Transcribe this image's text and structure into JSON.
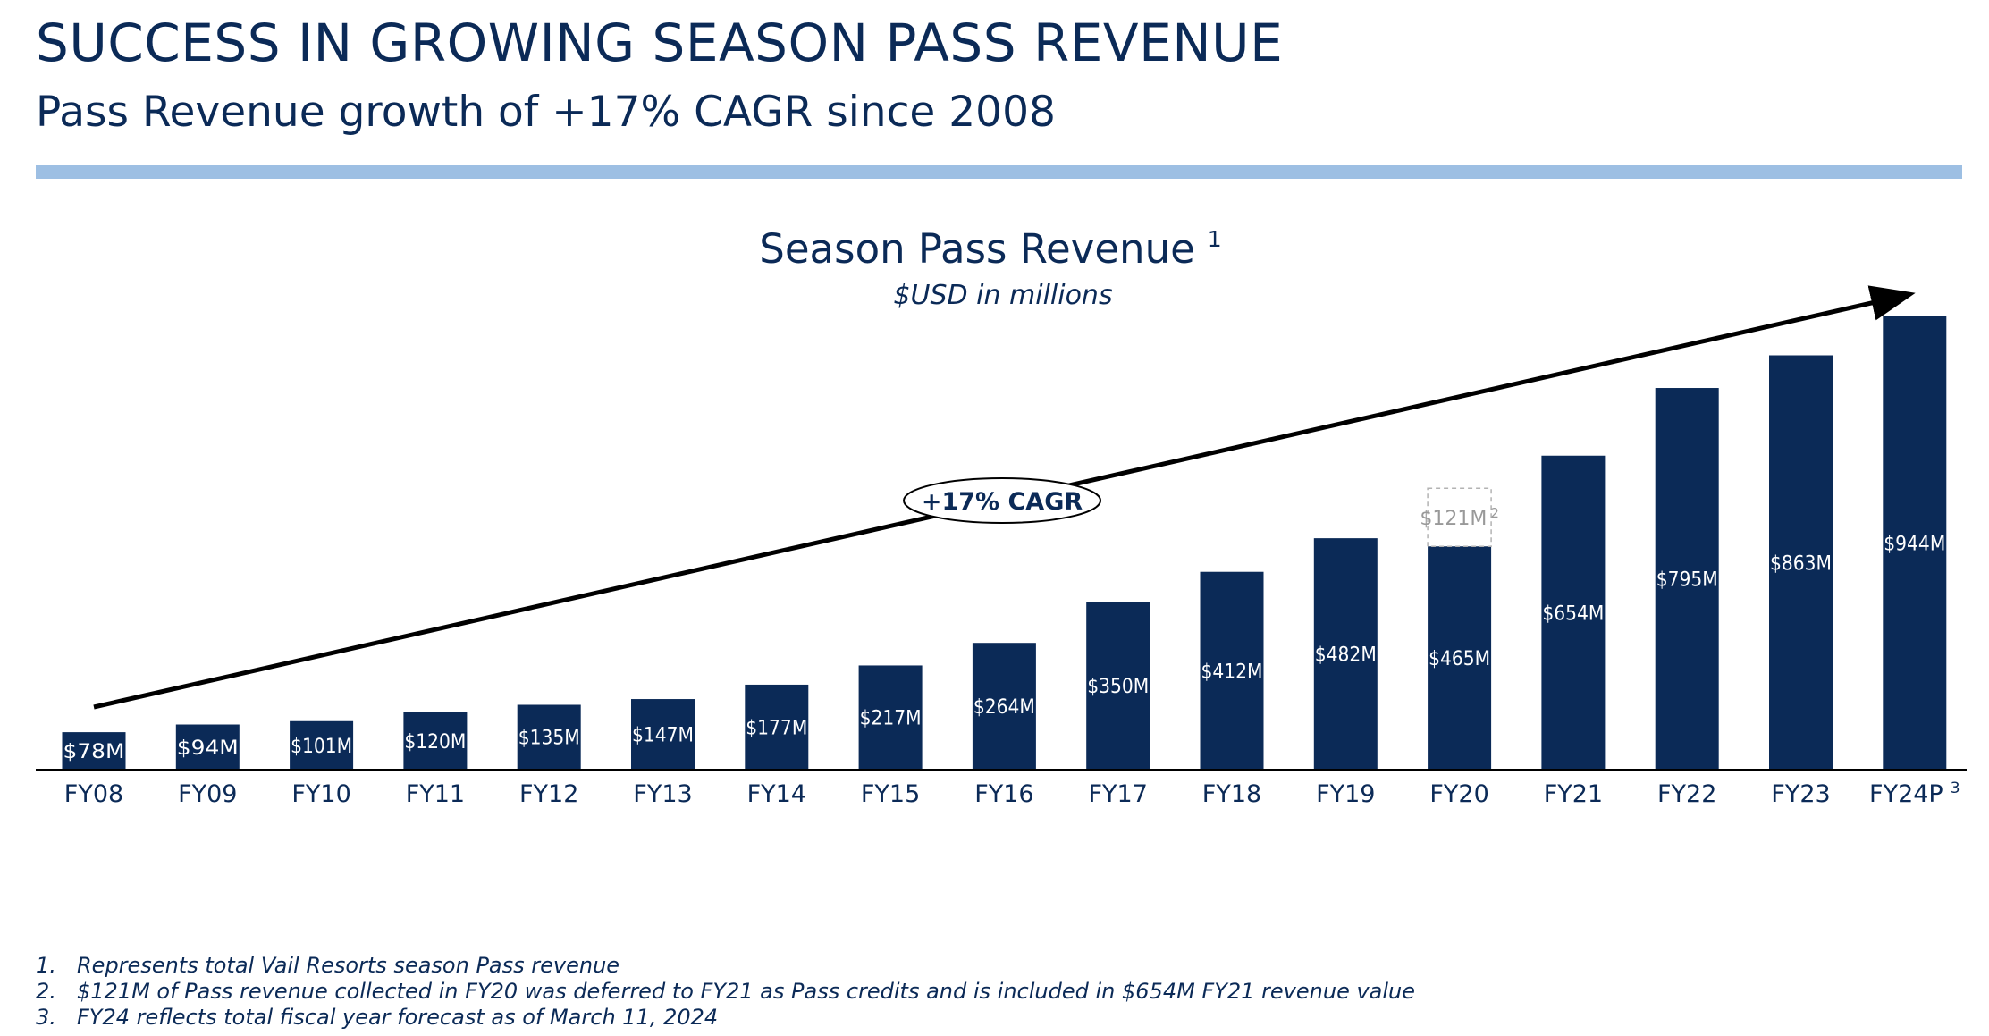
{
  "header": {
    "title": "SUCCESS IN GROWING SEASON PASS REVENUE",
    "subtitle": "Pass Revenue growth of +17% CAGR since 2008"
  },
  "chart_data": {
    "type": "bar",
    "title": "Season Pass Revenue",
    "title_superscript": "1",
    "subtitle": "$USD in millions",
    "categories": [
      "FY08",
      "FY09",
      "FY10",
      "FY11",
      "FY12",
      "FY13",
      "FY14",
      "FY15",
      "FY16",
      "FY17",
      "FY18",
      "FY19",
      "FY20",
      "FY21",
      "FY22",
      "FY23",
      "FY24P"
    ],
    "category_superscripts": {
      "FY24P": "3"
    },
    "values": [
      78,
      94,
      101,
      120,
      135,
      147,
      177,
      217,
      264,
      350,
      412,
      482,
      465,
      654,
      795,
      863,
      944
    ],
    "data_labels": [
      "$78M",
      "$94M",
      "$101M",
      "$120M",
      "$135M",
      "$147M",
      "$177M",
      "$217M",
      "$264M",
      "$350M",
      "$412M",
      "$482M",
      "$465M",
      "$654M",
      "$795M",
      "$863M",
      "$944M"
    ],
    "deferred": {
      "category": "FY20",
      "value": 121,
      "label": "$121M",
      "superscript": "2"
    },
    "trend_annotation": "+17% CAGR",
    "ylim": [
      0,
      944
    ],
    "grid": false,
    "legend": "none",
    "colors": {
      "bar": "#0b2a57",
      "deferred": "#b3b3b3",
      "trend": "#000000"
    }
  },
  "footnotes": [
    {
      "num": "1.",
      "text": "Represents total Vail Resorts season Pass revenue"
    },
    {
      "num": "2.",
      "text": "$121M of Pass revenue collected in FY20 was deferred to FY21 as Pass credits and is included in $654M FY21 revenue value"
    },
    {
      "num": "3.",
      "text": "FY24 reflects total fiscal year forecast as of March 11, 2024"
    }
  ]
}
